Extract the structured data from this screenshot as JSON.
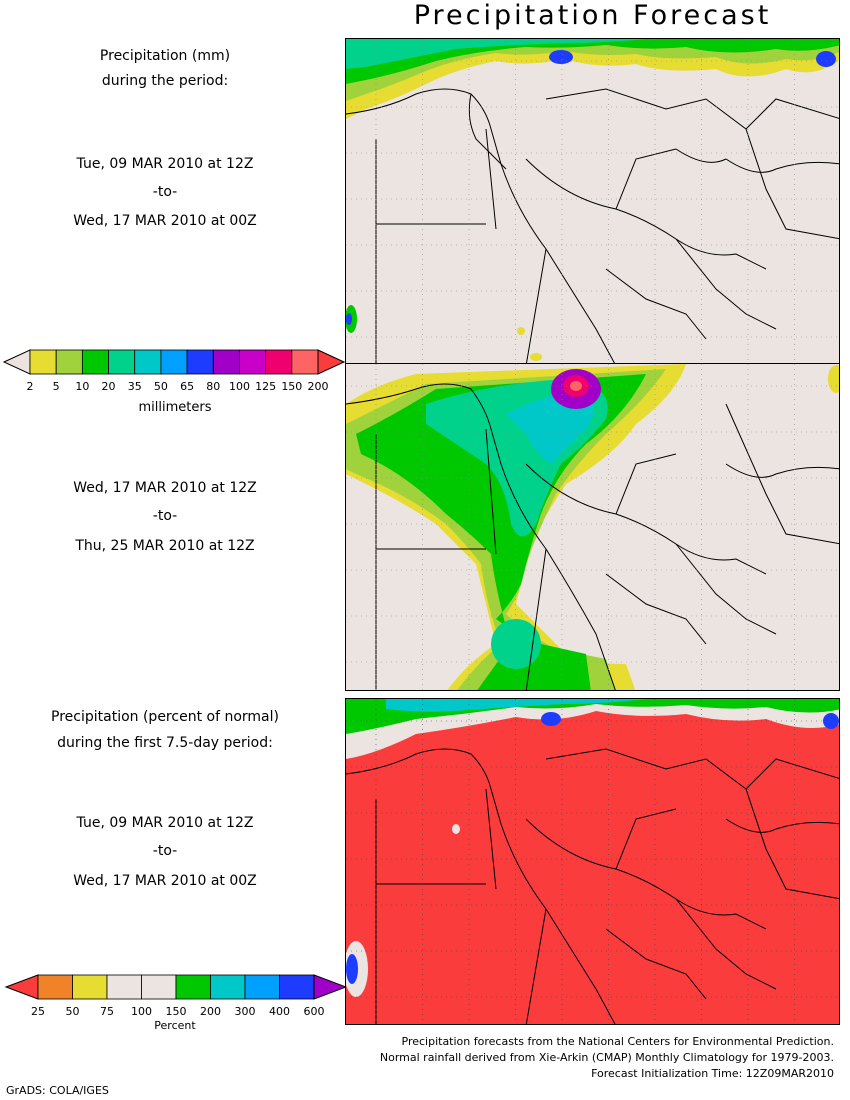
{
  "title": "Precipitation Forecast",
  "panel1": {
    "heading_line1": "Precipitation (mm)",
    "heading_line2": "during the period:",
    "start": "Tue, 09 MAR 2010 at 12Z",
    "to": "-to-",
    "end": "Wed, 17 MAR 2010 at 00Z"
  },
  "panel2": {
    "start": "Wed, 17 MAR 2010 at 12Z",
    "to": "-to-",
    "end": "Thu, 25 MAR 2010 at 12Z"
  },
  "panel3": {
    "heading_line1": "Precipitation (percent of normal)",
    "heading_line2": "during the first 7.5-day period:",
    "start": "Tue, 09 MAR 2010 at 12Z",
    "to": "-to-",
    "end": "Wed, 17 MAR 2010 at 00Z"
  },
  "colorbar_mm": {
    "labels": [
      "2",
      "5",
      "10",
      "20",
      "35",
      "50",
      "65",
      "80",
      "100",
      "125",
      "150",
      "200"
    ],
    "colors": [
      "#e6dc32",
      "#a0d23c",
      "#00c800",
      "#00d28c",
      "#00c8c8",
      "#00a0ff",
      "#1e3cff",
      "#a000c8",
      "#c800c8",
      "#f0006e",
      "#ff6464"
    ],
    "low_color": "#ece4e0",
    "high_color": "#fa3c3c",
    "unit": "millimeters"
  },
  "colorbar_pct": {
    "labels": [
      "25",
      "50",
      "75",
      "100",
      "150",
      "200",
      "300",
      "400",
      "600"
    ],
    "colors": [
      "#f08228",
      "#e6dc32",
      "#ece4e0",
      "#ece4e0",
      "#00c800",
      "#00c8c8",
      "#00a0ff",
      "#1e3cff"
    ],
    "low_color": "#fa3c3c",
    "high_color": "#a000c8",
    "unit": "Percent"
  },
  "credits": {
    "line1": "Precipitation forecasts from the National Centers for Environmental Prediction.",
    "line2": "Normal rainfall derived from Xie-Arkin (CMAP) Monthly Climatology for 1979-2003.",
    "line3": "Forecast Initialization Time: 12Z09MAR2010"
  },
  "software_tag": "GrADS: COLA/IGES",
  "colors": {
    "land": "#ece4e0",
    "below_normal": "#fa3c3c"
  }
}
